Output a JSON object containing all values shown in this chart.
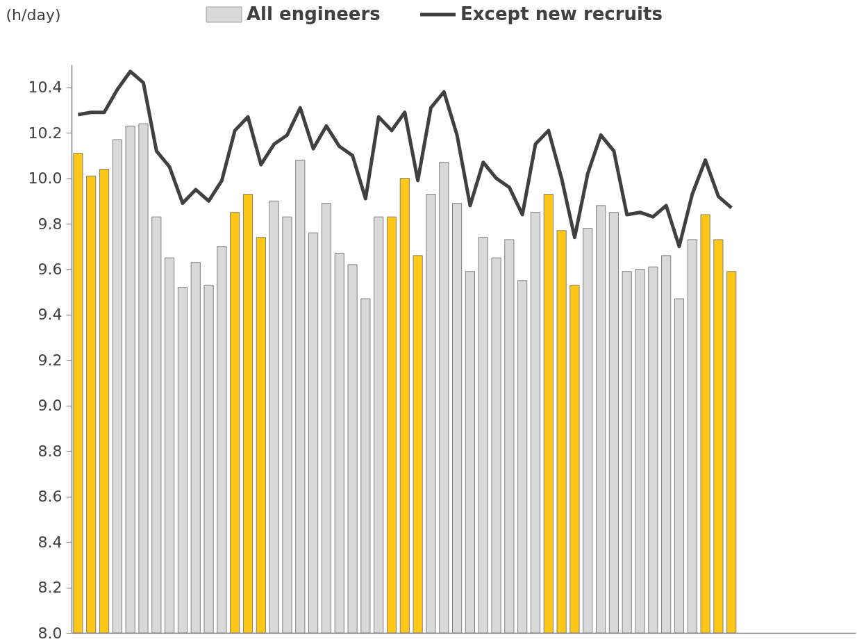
{
  "chart_data": {
    "type": "bar",
    "ylabel": "(h/day)",
    "categories": [
      null,
      null,
      null,
      null,
      null,
      null,
      null,
      null,
      null,
      null,
      null,
      null,
      null,
      null,
      null,
      null,
      null,
      null,
      null,
      null,
      null,
      null,
      null,
      null,
      null,
      null,
      null,
      null,
      null,
      null,
      null,
      null,
      null,
      null,
      null,
      null,
      null,
      null,
      null,
      null,
      null,
      null,
      null,
      null,
      null,
      null,
      null,
      null,
      null,
      null,
      null,
      null,
      null,
      null,
      null,
      null,
      null,
      null,
      null,
      null
    ],
    "series": [
      {
        "name": "All engineers",
        "color": "#d9d9d9",
        "colors": [
          "#ffc718",
          "#ffc718",
          "#ffc718",
          "#d9d9d9",
          "#d9d9d9",
          "#d9d9d9",
          "#d9d9d9",
          "#d9d9d9",
          "#d9d9d9",
          "#d9d9d9",
          "#d9d9d9",
          "#d9d9d9",
          "#ffc718",
          "#ffc718",
          "#ffc718",
          "#d9d9d9",
          "#d9d9d9",
          "#d9d9d9",
          "#d9d9d9",
          "#d9d9d9",
          "#d9d9d9",
          "#d9d9d9",
          "#d9d9d9",
          "#d9d9d9",
          "#ffc718",
          "#ffc718",
          "#ffc718",
          "#d9d9d9",
          "#d9d9d9",
          "#d9d9d9",
          "#d9d9d9",
          "#d9d9d9",
          "#d9d9d9",
          "#d9d9d9",
          "#d9d9d9",
          "#d9d9d9",
          "#ffc718",
          "#ffc718",
          "#ffc718",
          "#d9d9d9",
          "#d9d9d9",
          "#d9d9d9",
          "#d9d9d9",
          "#d9d9d9",
          "#d9d9d9",
          "#d9d9d9",
          "#d9d9d9",
          "#d9d9d9",
          "#ffc718",
          "#ffc718",
          "#ffc718",
          "#d9d9d9",
          "#d9d9d9",
          "#d9d9d9",
          "#d9d9d9",
          "#d9d9d9",
          "#d9d9d9",
          "#d9d9d9",
          "#d9d9d9",
          "#d9d9d9"
        ],
        "values": [
          10.11,
          10.01,
          10.04,
          10.17,
          10.23,
          10.24,
          9.83,
          9.65,
          9.52,
          9.63,
          9.53,
          9.7,
          9.85,
          9.93,
          9.74,
          9.9,
          9.83,
          10.08,
          9.76,
          9.89,
          9.67,
          9.62,
          9.47,
          9.83,
          9.83,
          10.0,
          9.66,
          9.93,
          10.07,
          9.89,
          9.59,
          9.74,
          9.65,
          9.73,
          9.55,
          9.85,
          9.93,
          9.77,
          9.53,
          9.78,
          9.88,
          9.85,
          9.59,
          9.6,
          9.61,
          9.66,
          9.47,
          9.73,
          9.84,
          9.73,
          9.59,
          null,
          null,
          null,
          null,
          null,
          null,
          null,
          null,
          null
        ]
      },
      {
        "name": "Except new recruits",
        "type": "line",
        "color": "#404040",
        "values": [
          10.28,
          10.29,
          10.29,
          10.39,
          10.47,
          10.42,
          10.12,
          10.05,
          9.89,
          9.95,
          9.9,
          9.99,
          10.21,
          10.27,
          10.06,
          10.15,
          10.19,
          10.31,
          10.13,
          10.23,
          10.14,
          10.1,
          9.91,
          10.27,
          10.21,
          10.29,
          9.99,
          10.31,
          10.38,
          10.19,
          9.88,
          10.07,
          10.0,
          9.96,
          9.84,
          10.15,
          10.21,
          10.0,
          9.74,
          10.02,
          10.19,
          10.12,
          9.84,
          9.85,
          9.83,
          9.88,
          9.7,
          9.93,
          10.08,
          9.92,
          9.87,
          null,
          null,
          null,
          null,
          null,
          null,
          null,
          null,
          null
        ]
      }
    ],
    "ylim": [
      8.0,
      10.5
    ],
    "yticks": [
      {
        "value": 8.0,
        "label": "8.0"
      },
      {
        "value": 8.2,
        "label": "8.2"
      },
      {
        "value": 8.4,
        "label": "8.4"
      },
      {
        "value": 8.6,
        "label": "8.6"
      },
      {
        "value": 8.8,
        "label": "8.8"
      },
      {
        "value": 9.0,
        "label": "9.0"
      },
      {
        "value": 9.2,
        "label": "9.2"
      },
      {
        "value": 9.4,
        "label": "9.4"
      },
      {
        "value": 9.6,
        "label": "9.6"
      },
      {
        "value": 9.8,
        "label": "9.8"
      },
      {
        "value": 10.0,
        "label": "10.0"
      },
      {
        "value": 10.2,
        "label": "10.2"
      },
      {
        "value": 10.4,
        "label": "10.4"
      }
    ],
    "grid": false,
    "legend": "top",
    "tick_labels": "y",
    "line_style": "solid",
    "marker": "none"
  }
}
